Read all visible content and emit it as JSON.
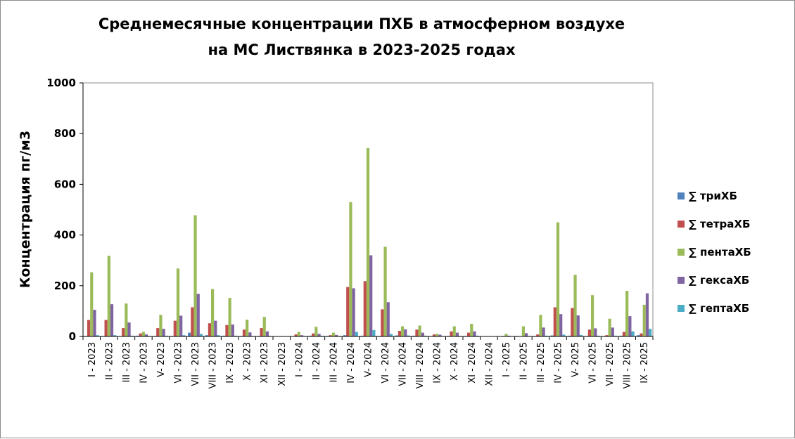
{
  "chart_data": {
    "type": "bar",
    "title": [
      "Среднемесячные концентрации ПХБ в атмосферном воздухе",
      "на МС  Листвянка  в 2023-2025 годах"
    ],
    "ylabel": "Концентрация пг/м3",
    "xlabel": "",
    "ylim": [
      0,
      1000
    ],
    "yticks": [
      0,
      200,
      400,
      600,
      800,
      1000
    ],
    "grid": false,
    "legend_position": "right",
    "categories": [
      "I - 2023",
      "II - 2023",
      "III - 2023",
      "IV - 2023",
      "V- 2023",
      "VI - 2023",
      "VII - 2023",
      "VIII - 2023",
      "IX - 2023",
      "X - 2023",
      "XI - 2023",
      "XII - 2023",
      "I - 2024",
      "II - 2024",
      "III - 2024",
      "IV - 2024",
      "V- 2024",
      "VI - 2024",
      "VII - 2024",
      "VIII - 2024",
      "IX - 2024",
      "X - 2024",
      "XI - 2024",
      "XII - 2024",
      "I - 2025",
      "II - 2025",
      "III - 2025",
      "IV - 2025",
      "V- 2025",
      "VI - 2025",
      "VII - 2025",
      "VIII - 2025",
      "IX - 2025"
    ],
    "series": [
      {
        "name": "∑ триХБ",
        "color": "#4f81bd",
        "values": [
          2,
          2,
          1,
          3,
          2,
          2,
          15,
          5,
          3,
          2,
          2,
          0,
          1,
          3,
          2,
          5,
          3,
          2,
          4,
          3,
          1,
          2,
          2,
          0,
          1,
          2,
          2,
          4,
          3,
          2,
          2,
          3,
          5
        ]
      },
      {
        "name": "∑ тетраХБ",
        "color": "#c0504d",
        "values": [
          65,
          65,
          33,
          12,
          33,
          62,
          115,
          52,
          45,
          27,
          33,
          0,
          8,
          12,
          5,
          195,
          218,
          107,
          22,
          27,
          8,
          20,
          15,
          0,
          2,
          0,
          8,
          115,
          112,
          27,
          5,
          18,
          12
        ]
      },
      {
        "name": "∑ пентаХБ",
        "color": "#9bbb59",
        "values": [
          253,
          318,
          130,
          18,
          85,
          268,
          478,
          187,
          152,
          66,
          77,
          0,
          18,
          38,
          15,
          530,
          743,
          354,
          40,
          43,
          10,
          40,
          50,
          0,
          10,
          40,
          85,
          450,
          243,
          163,
          70,
          180,
          125
        ]
      },
      {
        "name": "∑ гексаХБ",
        "color": "#8064a2",
        "values": [
          105,
          127,
          55,
          8,
          30,
          82,
          168,
          62,
          47,
          16,
          20,
          0,
          5,
          10,
          6,
          190,
          320,
          135,
          28,
          15,
          7,
          15,
          20,
          0,
          3,
          13,
          35,
          88,
          83,
          32,
          35,
          80,
          170
        ]
      },
      {
        "name": "∑ гептаХБ",
        "color": "#4bacc6",
        "values": [
          5,
          5,
          3,
          2,
          3,
          5,
          10,
          5,
          3,
          2,
          2,
          0,
          2,
          3,
          2,
          18,
          25,
          10,
          4,
          3,
          1,
          2,
          3,
          0,
          1,
          2,
          3,
          7,
          6,
          3,
          3,
          20,
          30
        ]
      }
    ]
  }
}
